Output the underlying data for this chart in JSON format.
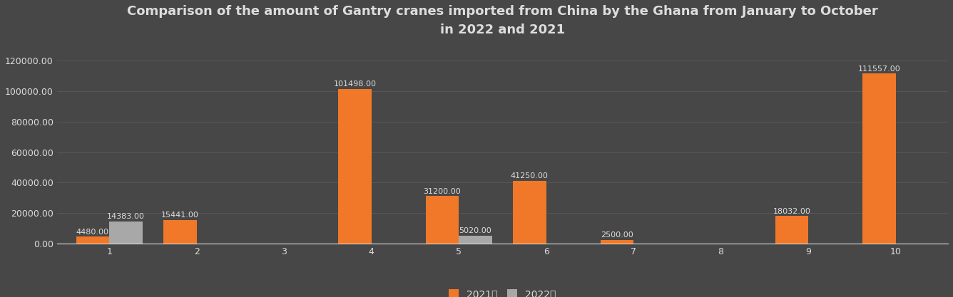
{
  "title_line1": "Comparison of the amount of Gantry cranes imported from China by the Ghana from January to October",
  "title_line2": "in 2022 and 2021",
  "categories": [
    "1",
    "2",
    "3",
    "4",
    "5",
    "6",
    "7",
    "8",
    "9",
    "10"
  ],
  "values_2021": [
    4480.0,
    15441.0,
    0,
    101498.0,
    31200.0,
    41250.0,
    2500.0,
    0,
    18032.0,
    111557.0
  ],
  "values_2022": [
    14383.0,
    0,
    0,
    0,
    5020.0,
    0,
    0,
    0,
    0,
    0
  ],
  "color_2021": "#F07828",
  "color_2022": "#A8A8A8",
  "background_color": "#474747",
  "text_color": "#DDDDDD",
  "grid_color": "#595959",
  "ylim": [
    0,
    130000
  ],
  "yticks": [
    0,
    20000,
    40000,
    60000,
    80000,
    100000,
    120000
  ],
  "legend_2021": "2021年",
  "legend_2022": "2022年",
  "bar_width": 0.38,
  "title_fontsize": 13,
  "tick_fontsize": 9,
  "label_fontsize": 8
}
